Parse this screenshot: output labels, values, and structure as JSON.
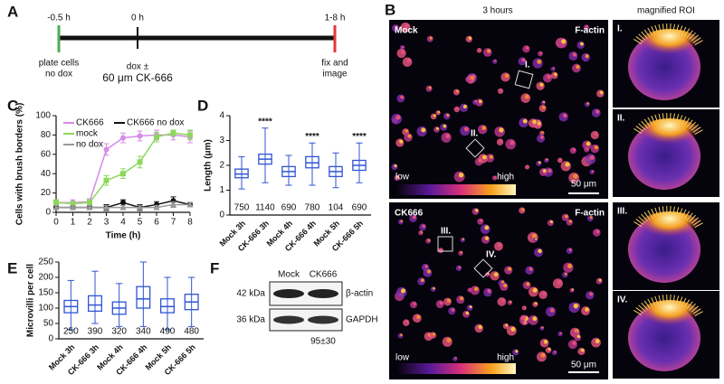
{
  "panel_labels": [
    "A",
    "B",
    "C",
    "D",
    "E",
    "F"
  ],
  "timeline": {
    "times": [
      "-0.5 h",
      "0 h",
      "1-8 h"
    ],
    "events": [
      [
        "plate cells",
        "no dox"
      ],
      [
        "dox ±",
        "60 μm CK-666"
      ],
      [
        "fix and",
        "image"
      ]
    ]
  },
  "microscopy": {
    "column_title": "3 hours",
    "roi_title": "magnified ROI",
    "rows": [
      {
        "condition": "Mock",
        "stain": "F-actin",
        "rois": [
          "I.",
          "II."
        ]
      },
      {
        "condition": "CK666",
        "stain": "F-actin",
        "rois": [
          "III.",
          "IV."
        ]
      }
    ],
    "colorbar": [
      "low",
      "high"
    ],
    "scale_bar": "50 μm",
    "magnified_labels": [
      "I.",
      "II.",
      "III.",
      "IV."
    ]
  },
  "chart_data": [
    {
      "type": "line",
      "xlabel": "Time (h)",
      "ylabel": "Cells with brush borders (%)",
      "x": [
        0,
        1,
        2,
        3,
        4,
        5,
        6,
        7,
        8
      ],
      "xlim": [
        0,
        8
      ],
      "xticks": [
        0,
        1,
        2,
        3,
        4,
        5,
        6,
        7,
        8
      ],
      "ylim": [
        0,
        100
      ],
      "yticks": [
        0,
        20,
        40,
        60,
        80,
        100
      ],
      "series": [
        {
          "name": "CK666",
          "color": "#d68be6",
          "marker": "circle",
          "values": [
            10,
            10,
            11,
            65,
            77,
            79,
            80,
            80,
            78
          ],
          "errors": [
            3,
            3,
            3,
            6,
            5,
            5,
            5,
            5,
            6
          ]
        },
        {
          "name": "CK666 no dox",
          "color": "#111111",
          "marker": "circle",
          "values": [
            5,
            5,
            5,
            5,
            10,
            5,
            8,
            12,
            8
          ],
          "errors": [
            2,
            2,
            2,
            3,
            3,
            3,
            3,
            4,
            2
          ]
        },
        {
          "name": "mock",
          "color": "#8cd85a",
          "marker": "square",
          "values": [
            10,
            9,
            10,
            33,
            40,
            52,
            78,
            82,
            80
          ],
          "errors": [
            3,
            2,
            3,
            5,
            5,
            6,
            5,
            3,
            5
          ]
        },
        {
          "name": "no dox",
          "color": "#999999",
          "marker": "triangle",
          "values": [
            5,
            5,
            5,
            5,
            5,
            5,
            5,
            8,
            8
          ],
          "errors": [
            2,
            2,
            2,
            2,
            2,
            2,
            2,
            3,
            2
          ]
        }
      ]
    },
    {
      "type": "box",
      "ylabel": "Length (μm)",
      "color": "#2f55d4",
      "categories": [
        "Mock 3h",
        "CK-666 3h",
        "Mock 4h",
        "CK-666 4h",
        "Mock 5h",
        "CK-666 5h"
      ],
      "boxes": [
        {
          "min": 1.05,
          "q1": 1.5,
          "median": 1.65,
          "q3": 1.85,
          "max": 2.35
        },
        {
          "min": 1.3,
          "q1": 2.05,
          "median": 2.25,
          "q3": 2.45,
          "max": 3.5
        },
        {
          "min": 1.2,
          "q1": 1.55,
          "median": 1.75,
          "q3": 1.95,
          "max": 2.4
        },
        {
          "min": 1.2,
          "q1": 1.9,
          "median": 2.1,
          "q3": 2.35,
          "max": 2.9
        },
        {
          "min": 1.1,
          "q1": 1.55,
          "median": 1.75,
          "q3": 1.95,
          "max": 2.5
        },
        {
          "min": 1.3,
          "q1": 1.8,
          "median": 2.0,
          "q3": 2.2,
          "max": 2.9
        }
      ],
      "n": [
        750,
        1140,
        690,
        780,
        104,
        690
      ],
      "significance": [
        null,
        "****",
        null,
        "****",
        null,
        "****"
      ],
      "ylim": [
        0,
        4
      ],
      "yticks": [
        0,
        1,
        2,
        3,
        4
      ]
    },
    {
      "type": "box",
      "ylabel": "Microvilli per cell",
      "color": "#2f55d4",
      "categories": [
        "Mock 3h",
        "CK-666 3h",
        "Mock 4h",
        "CK-666 4h",
        "Mock 5h",
        "CK-666 5h"
      ],
      "boxes": [
        {
          "min": 30,
          "q1": 85,
          "median": 105,
          "q3": 125,
          "max": 190
        },
        {
          "min": 50,
          "q1": 90,
          "median": 110,
          "q3": 140,
          "max": 220
        },
        {
          "min": 40,
          "q1": 80,
          "median": 100,
          "q3": 120,
          "max": 180
        },
        {
          "min": 40,
          "q1": 100,
          "median": 130,
          "q3": 170,
          "max": 250
        },
        {
          "min": 30,
          "q1": 85,
          "median": 105,
          "q3": 130,
          "max": 200
        },
        {
          "min": 40,
          "q1": 95,
          "median": 120,
          "q3": 145,
          "max": 200
        }
      ],
      "n": [
        250,
        390,
        320,
        340,
        490,
        480
      ],
      "ylim": [
        0,
        250
      ],
      "yticks": [
        0,
        50,
        100,
        150,
        200,
        250
      ]
    }
  ],
  "blot": {
    "lanes": [
      "Mock",
      "CK666"
    ],
    "bands": [
      {
        "size": "42 kDa",
        "protein": "β-actin"
      },
      {
        "size": "36 kDa",
        "protein": "GAPDH"
      }
    ],
    "quantification": "95±30"
  }
}
